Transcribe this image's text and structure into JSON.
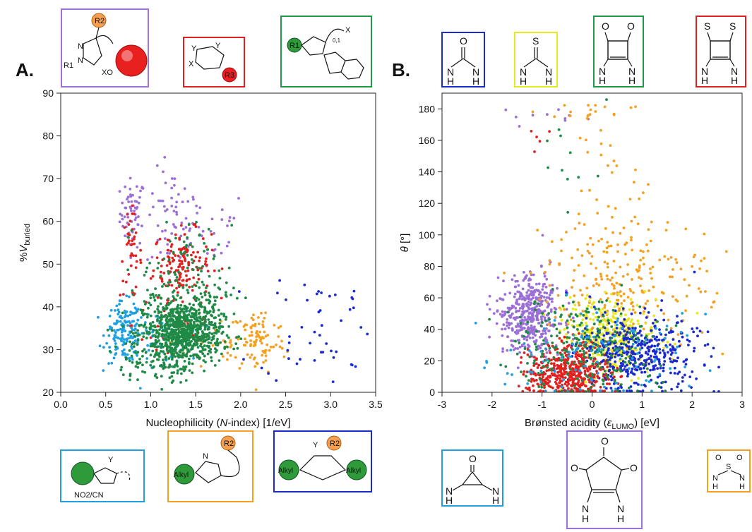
{
  "figure": {
    "panel_a_letter": "A.",
    "panel_b_letter": "B."
  },
  "chart_data": [
    {
      "type": "scatter",
      "panel": "A.",
      "xlabel": "Nucleophilicity (N-index) [1/eV]",
      "ylabel": "%Vburied",
      "xlim": [
        0,
        3.5
      ],
      "ylim": [
        20,
        90
      ],
      "xticks": [
        0.0,
        0.5,
        1.0,
        1.5,
        2.0,
        2.5,
        3.0,
        3.5
      ],
      "yticks": [
        20,
        30,
        40,
        50,
        60,
        70,
        80,
        90
      ],
      "xtick_labels": [
        "0.0",
        "0.5",
        "1.0",
        "1.5",
        "2.0",
        "2.5",
        "3.0",
        "3.5"
      ],
      "ytick_labels": [
        "20",
        "30",
        "40",
        "50",
        "60",
        "70",
        "80",
        "90"
      ],
      "grid": false,
      "legend": "none (structure boxes colour-coded by series)",
      "series": [
        {
          "color": "#9b6fd6",
          "clusters": [
            {
              "cx": 0.8,
              "cy": 62,
              "sx": 0.07,
              "sy": 4,
              "n": 60
            },
            {
              "cx": 1.25,
              "cy": 60,
              "sx": 0.15,
              "sy": 6,
              "n": 60
            },
            {
              "cx": 1.6,
              "cy": 58,
              "sx": 0.25,
              "sy": 5,
              "n": 25
            }
          ]
        },
        {
          "color": "#e32020",
          "clusters": [
            {
              "cx": 1.35,
              "cy": 50,
              "sx": 0.16,
              "sy": 4,
              "n": 150
            },
            {
              "cx": 0.78,
              "cy": 52,
              "sx": 0.06,
              "sy": 5,
              "n": 40
            },
            {
              "cx": 1.3,
              "cy": 36,
              "sx": 0.25,
              "sy": 6,
              "n": 40
            }
          ]
        },
        {
          "color": "#20a0e0",
          "clusters": [
            {
              "cx": 0.7,
              "cy": 34,
              "sx": 0.1,
              "sy": 3.5,
              "n": 140
            },
            {
              "cx": 1.0,
              "cy": 33,
              "sx": 0.2,
              "sy": 3,
              "n": 60
            }
          ]
        },
        {
          "color": "#f5a020",
          "clusters": [
            {
              "cx": 2.2,
              "cy": 32,
              "sx": 0.15,
              "sy": 4,
              "n": 90
            },
            {
              "cx": 1.8,
              "cy": 31,
              "sx": 0.2,
              "sy": 3,
              "n": 30
            }
          ]
        },
        {
          "color": "#1a2ad0",
          "clusters": [
            {
              "cx": 2.9,
              "cy": 36,
              "sx": 0.35,
              "sy": 7,
              "n": 50
            }
          ]
        },
        {
          "color": "#1e8a46",
          "clusters": [
            {
              "cx": 1.35,
              "cy": 34,
              "sx": 0.22,
              "sy": 3.6,
              "n": 800
            },
            {
              "cx": 1.4,
              "cy": 45,
              "sx": 0.25,
              "sy": 7,
              "n": 150
            },
            {
              "cx": 1.05,
              "cy": 28,
              "sx": 0.25,
              "sy": 3,
              "n": 100
            }
          ]
        }
      ]
    },
    {
      "type": "scatter",
      "panel": "B.",
      "xlabel": "Brønsted acidity (εLUMO) [eV]",
      "ylabel": "θ [°]",
      "xlim": [
        -3,
        3
      ],
      "ylim": [
        0,
        190
      ],
      "xticks": [
        -3,
        -2,
        -1,
        0,
        1,
        2,
        3
      ],
      "yticks": [
        0,
        20,
        40,
        60,
        80,
        100,
        120,
        140,
        160,
        180
      ],
      "xtick_labels": [
        "-3",
        "-2",
        "-1",
        "0",
        "1",
        "2",
        "3"
      ],
      "ytick_labels": [
        "0",
        "20",
        "40",
        "60",
        "80",
        "100",
        "120",
        "140",
        "160",
        "180"
      ],
      "grid": false,
      "legend": "none (structure boxes colour-coded by series)",
      "series": [
        {
          "color": "#9b6fd6",
          "clusters": [
            {
              "cx": -1.25,
              "cy": 50,
              "sx": 0.3,
              "sy": 13,
              "n": 450
            },
            {
              "cx": -1.1,
              "cy": 175,
              "sx": 0.5,
              "sy": 3,
              "n": 10
            }
          ]
        },
        {
          "color": "#f5a020",
          "clusters": [
            {
              "cx": 0.7,
              "cy": 70,
              "sx": 0.8,
              "sy": 22,
              "n": 250
            },
            {
              "cx": 0.2,
              "cy": 140,
              "sx": 0.5,
              "sy": 25,
              "n": 25
            },
            {
              "cx": 0.0,
              "cy": 178,
              "sx": 0.6,
              "sy": 2,
              "n": 15
            }
          ]
        },
        {
          "color": "#e8e820",
          "clusters": [
            {
              "cx": 0.4,
              "cy": 35,
              "sx": 0.45,
              "sy": 12,
              "n": 350
            }
          ]
        },
        {
          "color": "#1a2ad0",
          "clusters": [
            {
              "cx": 0.9,
              "cy": 25,
              "sx": 0.6,
              "sy": 12,
              "n": 450
            }
          ]
        },
        {
          "color": "#e32020",
          "clusters": [
            {
              "cx": -0.45,
              "cy": 12,
              "sx": 0.4,
              "sy": 9,
              "n": 450
            },
            {
              "cx": -1.0,
              "cy": 165,
              "sx": 0.1,
              "sy": 8,
              "n": 5
            }
          ]
        },
        {
          "color": "#1e8a46",
          "clusters": [
            {
              "cx": -0.2,
              "cy": 30,
              "sx": 0.7,
              "sy": 15,
              "n": 250
            },
            {
              "cx": -0.4,
              "cy": 155,
              "sx": 0.3,
              "sy": 20,
              "n": 12
            }
          ]
        },
        {
          "color": "#20a0e0",
          "clusters": [
            {
              "cx": 0.0,
              "cy": 20,
              "sx": 0.9,
              "sy": 15,
              "n": 120
            }
          ]
        }
      ]
    }
  ],
  "structures": {
    "a_top_1": {
      "border_color": "#a070d8",
      "labels": {
        "r2": "R2",
        "r1": "R1",
        "n": "N",
        "x": "XO"
      }
    },
    "a_top_2": {
      "border_color": "#e02020",
      "labels": {
        "y": "Y",
        "x": "X",
        "r3": "R3"
      }
    },
    "a_top_3": {
      "border_color": "#1e9a4a",
      "labels": {
        "r1": "R1",
        "x": "X",
        "sub": "0,1"
      }
    },
    "a_bot_1": {
      "border_color": "#20a0e0",
      "labels": {
        "y": "Y",
        "sub": "NO2/CN"
      }
    },
    "a_bot_2": {
      "border_color": "#f5a020",
      "labels": {
        "r2": "R2",
        "alkyl": "Alkyl",
        "n": "N"
      }
    },
    "a_bot_3": {
      "border_color": "#1a2ad0",
      "labels": {
        "r2": "R2",
        "alkyl_left": "Alkyl",
        "alkyl_right": "Alkyl",
        "y": "Y"
      }
    },
    "b_top_1": {
      "border_color": "#1a2ad0",
      "labels": {
        "o": "O",
        "n": "N",
        "h": "H"
      }
    },
    "b_top_2": {
      "border_color": "#e8e820",
      "labels": {
        "s": "S",
        "n": "N",
        "h": "H"
      }
    },
    "b_top_3": {
      "border_color": "#1e9a4a",
      "labels": {
        "o": "O",
        "n": "N",
        "h": "H"
      }
    },
    "b_top_4": {
      "border_color": "#e02020",
      "labels": {
        "s": "S",
        "n": "N",
        "h": "H"
      }
    },
    "b_bot_1": {
      "border_color": "#20a0e0",
      "labels": {
        "o": "O",
        "n": "N",
        "h": "H"
      }
    },
    "b_bot_2": {
      "border_color": "#a070d8",
      "labels": {
        "o": "O",
        "n": "N",
        "h": "H"
      }
    },
    "b_bot_3": {
      "border_color": "#f5a020",
      "labels": {
        "o": "O",
        "s": "S",
        "n": "N",
        "h": "H"
      }
    }
  }
}
